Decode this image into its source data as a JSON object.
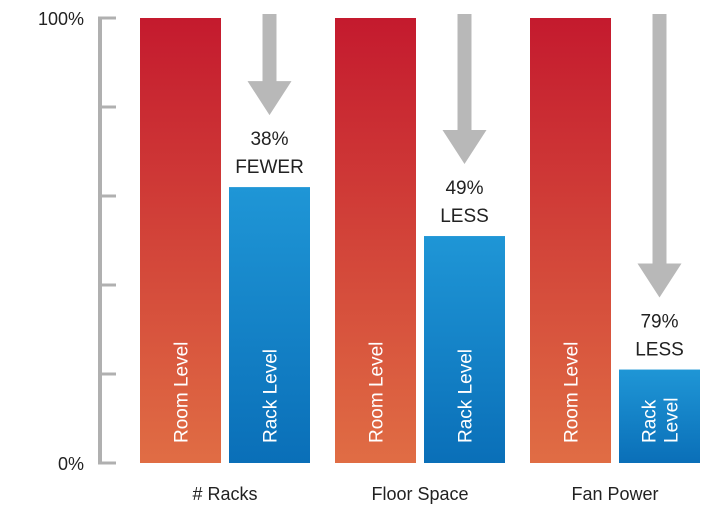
{
  "chart_data": {
    "type": "bar",
    "title": "",
    "xlabel": "",
    "ylabel": "",
    "ylim": [
      0,
      100
    ],
    "y_ticks": [
      {
        "value": 100,
        "label": "100%"
      },
      {
        "value": 80,
        "label": ""
      },
      {
        "value": 60,
        "label": ""
      },
      {
        "value": 40,
        "label": ""
      },
      {
        "value": 20,
        "label": ""
      },
      {
        "value": 0,
        "label": "0%"
      }
    ],
    "categories": [
      "# Racks",
      "Floor Space",
      "Fan Power"
    ],
    "series": [
      {
        "name": "Room Level",
        "values": [
          100,
          100,
          100
        ],
        "bar_labels": [
          [
            "Room Level"
          ],
          [
            "Room Level"
          ],
          [
            "Room Level"
          ]
        ]
      },
      {
        "name": "Rack Level",
        "values": [
          62,
          51,
          21
        ],
        "bar_labels": [
          [
            "Rack Level"
          ],
          [
            "Rack Level"
          ],
          [
            "Rack",
            "Level"
          ]
        ]
      }
    ],
    "annotations": [
      {
        "category": "# Racks",
        "lines": [
          "38%",
          "FEWER"
        ],
        "reduction": 38
      },
      {
        "category": "Floor Space",
        "lines": [
          "49%",
          "LESS"
        ],
        "reduction": 49
      },
      {
        "category": "Fan Power",
        "lines": [
          "79%",
          "LESS"
        ],
        "reduction": 79
      }
    ],
    "grid": false,
    "legend": "none",
    "colors": {
      "room_top": "#c41a2e",
      "room_bottom": "#e06d44",
      "rack_top": "#1f96d6",
      "rack_bottom": "#0a6fb8",
      "arrow": "#b8b8b8",
      "axis": "#b0b0b0",
      "text": "#222222",
      "bar_text": "#ffffff"
    }
  }
}
